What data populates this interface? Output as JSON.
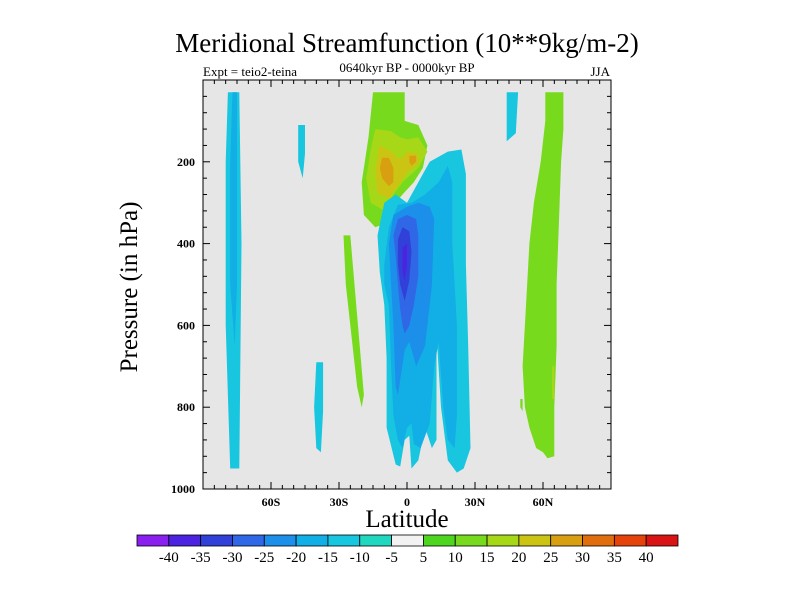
{
  "chart_data": {
    "type": "heatmap",
    "title": "Meridional Streamfunction (10**9kg/m-2)",
    "left_string": "Expt = teio2-teina",
    "center_string": "0640kyr BP - 0000kyr BP",
    "right_string": "JJA",
    "xlabel": "Latitude",
    "ylabel": "Pressure (in hPa)",
    "xlim": [
      -90,
      90
    ],
    "ylim": [
      1000,
      0
    ],
    "x_ticks": [
      {
        "value": -60,
        "label": "60S"
      },
      {
        "value": -30,
        "label": "30S"
      },
      {
        "value": 0,
        "label": "0"
      },
      {
        "value": 30,
        "label": "30N"
      },
      {
        "value": 60,
        "label": "60N"
      }
    ],
    "y_ticks": [
      {
        "value": 200,
        "label": "200"
      },
      {
        "value": 400,
        "label": "400"
      },
      {
        "value": 600,
        "label": "600"
      },
      {
        "value": 800,
        "label": "800"
      },
      {
        "value": 1000,
        "label": "1000"
      }
    ],
    "background_color": "#e6e6e6",
    "colorbar": {
      "labels": [
        "-40",
        "-35",
        "-30",
        "-25",
        "-20",
        "-15",
        "-10",
        "-5",
        "5",
        "10",
        "15",
        "20",
        "25",
        "30",
        "35",
        "40"
      ],
      "colors": [
        "#8a20f0",
        "#4b23e0",
        "#3040d8",
        "#2f67e6",
        "#1c8fea",
        "#12aee6",
        "#18c6e0",
        "#20d8bf",
        "#f2f2f2",
        "#4ed61f",
        "#78da1c",
        "#a6d817",
        "#ccc412",
        "#d8a010",
        "#e06e0e",
        "#e6420c",
        "#d81414"
      ]
    },
    "regions": [
      {
        "level": -10,
        "polygon": [
          [
            -79,
            30
          ],
          [
            -74,
            30
          ],
          [
            -73,
            400
          ],
          [
            -74,
            950
          ],
          [
            -78,
            950
          ],
          [
            -80,
            600
          ],
          [
            -80,
            200
          ]
        ]
      },
      {
        "level": -15,
        "polygon": [
          [
            -77,
            30
          ],
          [
            -75,
            30
          ],
          [
            -75,
            500
          ],
          [
            -76,
            650
          ],
          [
            -78,
            500
          ],
          [
            -78,
            200
          ]
        ]
      },
      {
        "level": -10,
        "polygon": [
          [
            -48,
            110
          ],
          [
            -45,
            110
          ],
          [
            -45,
            180
          ],
          [
            -46,
            240
          ],
          [
            -48,
            200
          ]
        ]
      },
      {
        "level": -10,
        "polygon": [
          [
            -40,
            690
          ],
          [
            -37,
            690
          ],
          [
            -37,
            810
          ],
          [
            -38,
            910
          ],
          [
            -40,
            900
          ],
          [
            -41,
            800
          ]
        ]
      },
      {
        "level": 10,
        "polygon": [
          [
            -28,
            380
          ],
          [
            -25,
            380
          ],
          [
            -19,
            770
          ],
          [
            -20,
            800
          ],
          [
            -22,
            750
          ],
          [
            -27,
            500
          ]
        ]
      },
      {
        "level": 10,
        "polygon": [
          [
            -15,
            30
          ],
          [
            -1,
            30
          ],
          [
            -1,
            100
          ],
          [
            5,
            110
          ],
          [
            9,
            160
          ],
          [
            7,
            215
          ],
          [
            3,
            250
          ],
          [
            -2,
            280
          ],
          [
            -5,
            300
          ],
          [
            -9,
            350
          ],
          [
            -14,
            360
          ],
          [
            -19,
            330
          ],
          [
            -20,
            250
          ],
          [
            -17,
            140
          ]
        ]
      },
      {
        "level": 15,
        "polygon": [
          [
            -14,
            120
          ],
          [
            -7,
            125
          ],
          [
            -3,
            140
          ],
          [
            0,
            145
          ],
          [
            5,
            140
          ],
          [
            9,
            175
          ],
          [
            5,
            215
          ],
          [
            -2,
            250
          ],
          [
            -6,
            280
          ],
          [
            -10,
            320
          ],
          [
            -16,
            300
          ],
          [
            -18,
            240
          ],
          [
            -16,
            170
          ]
        ]
      },
      {
        "level": 20,
        "polygon": [
          [
            -12,
            160
          ],
          [
            -7,
            175
          ],
          [
            -3,
            195
          ],
          [
            0,
            175
          ],
          [
            5,
            180
          ],
          [
            5,
            205
          ],
          [
            0,
            225
          ],
          [
            -4,
            260
          ],
          [
            -8,
            290
          ],
          [
            -13,
            275
          ],
          [
            -14,
            220
          ]
        ]
      },
      {
        "level": 25,
        "polygon": [
          [
            -11,
            190
          ],
          [
            -8,
            190
          ],
          [
            -6,
            215
          ],
          [
            -6,
            250
          ],
          [
            -8,
            260
          ],
          [
            -11,
            240
          ],
          [
            -12,
            215
          ]
        ]
      },
      {
        "level": 25,
        "polygon": [
          [
            1,
            185
          ],
          [
            4,
            185
          ],
          [
            4,
            200
          ],
          [
            2,
            210
          ],
          [
            1,
            200
          ]
        ]
      },
      {
        "level": -10,
        "polygon": [
          [
            -13,
            380
          ],
          [
            -10,
            300
          ],
          [
            -5,
            280
          ],
          [
            0,
            300
          ],
          [
            5,
            250
          ],
          [
            10,
            200
          ],
          [
            18,
            175
          ],
          [
            24,
            170
          ],
          [
            26,
            230
          ],
          [
            26,
            450
          ],
          [
            27,
            650
          ],
          [
            28,
            900
          ],
          [
            25,
            950
          ],
          [
            22,
            960
          ],
          [
            18,
            930
          ],
          [
            15,
            800
          ],
          [
            13,
            620
          ],
          [
            13,
            880
          ],
          [
            11,
            900
          ],
          [
            8,
            850
          ],
          [
            5,
            930
          ],
          [
            2,
            950
          ],
          [
            1,
            870
          ],
          [
            -1,
            880
          ],
          [
            -3,
            945
          ],
          [
            -5,
            940
          ],
          [
            -9,
            850
          ],
          [
            -9,
            680
          ],
          [
            -10,
            550
          ],
          [
            -12,
            470
          ]
        ]
      },
      {
        "level": -15,
        "polygon": [
          [
            -10,
            450
          ],
          [
            -8,
            360
          ],
          [
            -4,
            305
          ],
          [
            2,
            300
          ],
          [
            8,
            280
          ],
          [
            14,
            250
          ],
          [
            18,
            210
          ],
          [
            20,
            250
          ],
          [
            20,
            400
          ],
          [
            22,
            600
          ],
          [
            22,
            820
          ],
          [
            21,
            900
          ],
          [
            18,
            880
          ],
          [
            16,
            800
          ],
          [
            14,
            640
          ],
          [
            12,
            700
          ],
          [
            10,
            840
          ],
          [
            6,
            900
          ],
          [
            3,
            890
          ],
          [
            2,
            840
          ],
          [
            0,
            850
          ],
          [
            -2,
            900
          ],
          [
            -4,
            880
          ],
          [
            -6,
            820
          ],
          [
            -7,
            700
          ],
          [
            -8,
            550
          ],
          [
            -10,
            500
          ]
        ]
      },
      {
        "level": -20,
        "polygon": [
          [
            -8,
            400
          ],
          [
            -6,
            330
          ],
          [
            0,
            310
          ],
          [
            5,
            300
          ],
          [
            10,
            310
          ],
          [
            12,
            340
          ],
          [
            11,
            500
          ],
          [
            8,
            650
          ],
          [
            4,
            700
          ],
          [
            1,
            640
          ],
          [
            -1,
            660
          ],
          [
            -4,
            770
          ],
          [
            -5,
            750
          ],
          [
            -6,
            600
          ],
          [
            -7,
            500
          ]
        ]
      },
      {
        "level": -25,
        "polygon": [
          [
            -6,
            380
          ],
          [
            -4,
            340
          ],
          [
            0,
            330
          ],
          [
            4,
            340
          ],
          [
            5,
            380
          ],
          [
            5,
            480
          ],
          [
            3,
            550
          ],
          [
            1,
            600
          ],
          [
            -1,
            620
          ],
          [
            -2,
            600
          ],
          [
            -3,
            560
          ],
          [
            -4,
            500
          ],
          [
            -5,
            430
          ]
        ]
      },
      {
        "level": -30,
        "polygon": [
          [
            -4,
            390
          ],
          [
            -2,
            360
          ],
          [
            1,
            370
          ],
          [
            2,
            420
          ],
          [
            1,
            490
          ],
          [
            -1,
            540
          ],
          [
            -3,
            500
          ],
          [
            -4,
            450
          ]
        ]
      },
      {
        "level": -35,
        "polygon": [
          [
            -2,
            410
          ],
          [
            0,
            400
          ],
          [
            0,
            450
          ],
          [
            -1,
            490
          ],
          [
            -2,
            470
          ]
        ]
      },
      {
        "level": -10,
        "polygon": [
          [
            44,
            30
          ],
          [
            49,
            30
          ],
          [
            48,
            130
          ],
          [
            44,
            150
          ],
          [
            44,
            90
          ]
        ]
      },
      {
        "level": 10,
        "polygon": [
          [
            61,
            30
          ],
          [
            69,
            30
          ],
          [
            69,
            120
          ],
          [
            68,
            200
          ],
          [
            67,
            350
          ],
          [
            66,
            500
          ],
          [
            66,
            650
          ],
          [
            65,
            800
          ],
          [
            65,
            920
          ],
          [
            62,
            925
          ],
          [
            60,
            910
          ],
          [
            57,
            900
          ],
          [
            54,
            850
          ],
          [
            52,
            800
          ],
          [
            51,
            700
          ],
          [
            52,
            600
          ],
          [
            54,
            400
          ],
          [
            56,
            300
          ],
          [
            59,
            200
          ],
          [
            61,
            100
          ]
        ]
      },
      {
        "level": 10,
        "polygon": [
          [
            50,
            780
          ],
          [
            51,
            780
          ],
          [
            51,
            810
          ],
          [
            50,
            800
          ]
        ]
      },
      {
        "level": 15,
        "polygon": [
          [
            64,
            700
          ],
          [
            65,
            700
          ],
          [
            65,
            780
          ],
          [
            64,
            780
          ]
        ]
      }
    ]
  }
}
